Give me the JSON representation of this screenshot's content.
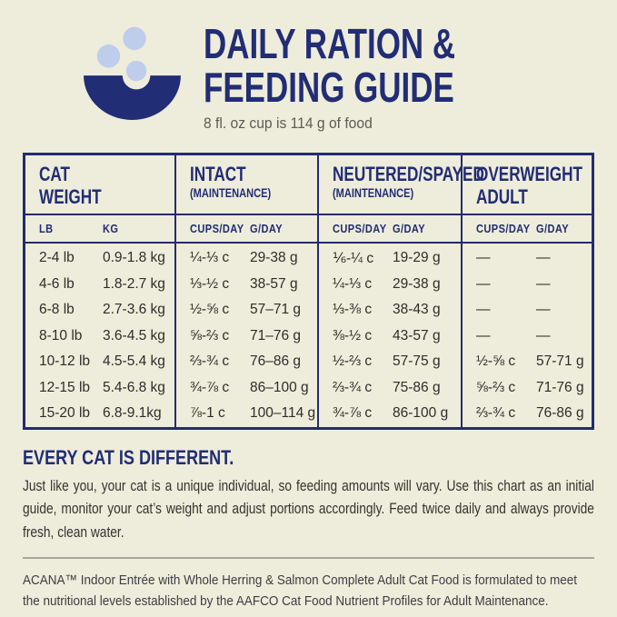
{
  "colors": {
    "background": "#eeecdb",
    "navy": "#212d74",
    "kibble_blue": "#bfcdec",
    "body_text": "#2d2d2a",
    "divider_gray": "#a8a79e"
  },
  "header": {
    "title_line1": "DAILY RATION &",
    "title_line2": "FEEDING GUIDE",
    "subtitle": "8 fl. oz cup is 114 g of food",
    "icon": "bowl-with-kibble-icon"
  },
  "table": {
    "groups": [
      {
        "title": "CAT",
        "title2": "WEIGHT",
        "note": "",
        "col1": "LB",
        "col2": "KG"
      },
      {
        "title": "INTACT",
        "title2": "",
        "note": "(MAINTENANCE)",
        "col1": "CUPS/DAY",
        "col2": "G/DAY"
      },
      {
        "title": "NEUTERED/SPAYED",
        "title2": "",
        "note": "(MAINTENANCE)",
        "col1": "CUPS/DAY",
        "col2": "G/DAY"
      },
      {
        "title": "OVERWEIGHT",
        "title2": "ADULT",
        "note": "",
        "col1": "CUPS/DAY",
        "col2": "G/DAY"
      }
    ],
    "rows": [
      [
        "2-4 lb",
        "0.9-1.8 kg",
        "¼-⅓ c",
        "29-38 g",
        "⅙-¼ c",
        "19-29 g",
        "—",
        "—"
      ],
      [
        "4-6 lb",
        "1.8-2.7 kg",
        "⅓-½ c",
        "38-57 g",
        "¼-⅓ c",
        "29-38 g",
        "—",
        "—"
      ],
      [
        "6-8 lb",
        "2.7-3.6 kg",
        "½-⅝ c",
        "57–71 g",
        "⅓-⅜ c",
        "38-43 g",
        "—",
        "—"
      ],
      [
        "8-10 lb",
        "3.6-4.5 kg",
        "⅝-⅔ c",
        "71–76 g",
        "⅜-½ c",
        "43-57 g",
        "—",
        "—"
      ],
      [
        "10-12 lb",
        "4.5-5.4 kg",
        "⅔-¾ c",
        "76–86 g",
        "½-⅔ c",
        "57-75 g",
        "½-⅝ c",
        "57-71 g"
      ],
      [
        "12-15 lb",
        "5.4-6.8 kg",
        "¾-⅞ c",
        "86–100 g",
        "⅔-¾ c",
        "75-86 g",
        "⅝-⅔ c",
        "71-76 g"
      ],
      [
        "15-20 lb",
        "6.8-9.1kg",
        "⅞-1 c",
        "100–114 g",
        "¾-⅞ c",
        "86-100 g",
        "⅔-¾ c",
        "76-86 g"
      ]
    ]
  },
  "notes": {
    "heading": "EVERY CAT IS DIFFERENT.",
    "body": "Just like you, your cat is a unique individual, so feeding amounts will vary. Use this chart as an initial guide, monitor your cat’s weight and adjust portions accordingly. Feed twice daily and always provide fresh, clean water."
  },
  "footer": {
    "text": "ACANA™ Indoor Entrée with Whole Herring & Salmon Complete Adult Cat Food is formulated to meet the nutritional levels established by the AAFCO Cat Food Nutrient Profiles for Adult Maintenance."
  }
}
